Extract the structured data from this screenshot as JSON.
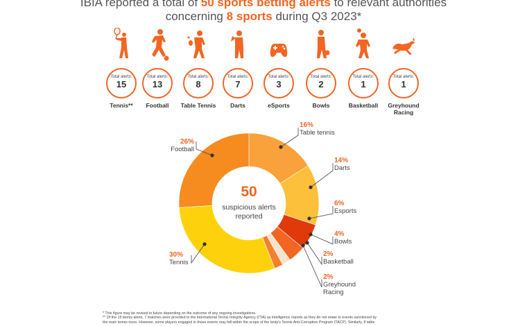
{
  "headline": {
    "line1_pre": "IBIA reported a total of ",
    "line1_highlight": "50 sports betting alerts",
    "line1_post": " to relevant authorities",
    "line2_pre": "concerning ",
    "line2_highlight": "8 sports",
    "line2_post": " during Q3 2023*"
  },
  "sports": [
    {
      "label_top": "Total alerts:",
      "count": "15",
      "name": "Tennis**",
      "icon": "tennis-player-icon"
    },
    {
      "label_top": "Total alerts:",
      "count": "13",
      "name": "Football",
      "icon": "football-player-icon"
    },
    {
      "label_top": "Total alerts:",
      "count": "8",
      "name": "Table Tennis",
      "icon": "table-tennis-player-icon"
    },
    {
      "label_top": "Total alerts:",
      "count": "7",
      "name": "Darts",
      "icon": "darts-player-icon"
    },
    {
      "label_top": "Total alerts:",
      "count": "3",
      "name": "eSports",
      "icon": "game-controller-icon"
    },
    {
      "label_top": "Total alerts:",
      "count": "2",
      "name": "Bowls",
      "icon": "bowls-player-icon"
    },
    {
      "label_top": "Total alerts:",
      "count": "1",
      "name": "Basketball",
      "icon": "basketball-player-icon"
    },
    {
      "label_top": "Total alerts:",
      "count": "1",
      "name": "Greyhound Racing",
      "icon": "greyhound-icon"
    }
  ],
  "center": {
    "value": "50",
    "line1": "suspicious alerts",
    "line2": "reported"
  },
  "chart_data": {
    "type": "pie",
    "categories": [
      "Table tennis",
      "Darts",
      "Esports",
      "Bowls",
      "Basketball",
      "Greyhound Racing",
      "Tennis",
      "Football"
    ],
    "values": [
      16,
      14,
      6,
      4,
      2,
      2,
      30,
      26
    ],
    "value_labels": [
      "16%",
      "14%",
      "6%",
      "4%",
      "2%",
      "2%",
      "30%",
      "26%"
    ],
    "colors": [
      "#f9a13a",
      "#fcc03a",
      "#e0390c",
      "#f26522",
      "#fbe2cf",
      "#f47f2e",
      "#fdd20c",
      "#f68b1f"
    ],
    "center_value": 50
  },
  "footnotes": [
    "* This figure may be revised in future depending on the outcome of any ongoing investigations.",
    "** Of the 15 tennis alerts, 7 matches were provided to the International Tennis Integrity Agency (ITIA) as intelligence reports as they do not relate to events sanctioned by",
    "the main tennis tours. However, some players engaged in those events may fall within the scope of the body's Tennis Anti-Corruption Program (TACP). Similarly, 8 table"
  ],
  "colors": {
    "accent": "#f26522",
    "text": "#444444"
  }
}
